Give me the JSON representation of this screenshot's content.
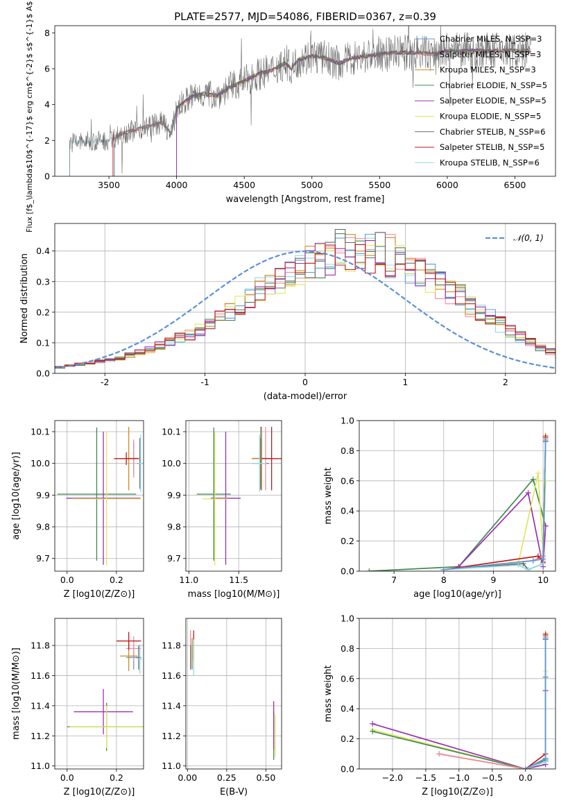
{
  "figure_title": "PLATE=2577, MJD=54086, FIBERID=0367, z=0.39",
  "colors": {
    "Chabrier MILES": "#5b9bd5",
    "Salpeter MILES": "#f08aa0",
    "Kroupa MILES": "#c98a1e",
    "Chabrier ELODIE": "#3f8a4f",
    "Salpeter ELODIE": "#9b2fb0",
    "Kroupa ELODIE": "#e0e85a",
    "Chabrier STELIB": "#6a6a6a",
    "Salpeter STELIB": "#c01818",
    "Kroupa STELIB": "#8fdbe8",
    "normal": "#5b8fd8"
  },
  "labels": {
    "spec_ylabel": "Flux [f$_\\lambda$10$^{-17}$ erg cm$^{-2}$ s$^{-1}$ A$^{-1}$]",
    "spec_xlabel": "wavelength [Angstrom, rest frame]",
    "hist_ylabel": "Normed distribution",
    "hist_xlabel": "(data-model)/error",
    "hist_legend": "𝒩(0, 1)",
    "age_ylabel": "age [log10(age/yr)]",
    "Z_xlabel": "Z [log10(Z/Z⊙)]",
    "mass_xlabel": "mass [log10(M/M⊙)]",
    "mw_ylabel": "mass weight",
    "age_xlabel": "age [log10(age/yr)]",
    "mass_ylabel": "mass [log10(M/M⊙)]",
    "ebv_xlabel": "E(B-V)"
  },
  "chart_data": [
    {
      "type": "line",
      "panel": "spectrum",
      "title": "PLATE=2577, MJD=54086, FIBERID=0367, z=0.39",
      "xlabel": "wavelength [Angstrom, rest frame]",
      "ylabel": "Flux [f_λ 10^-17 erg cm^-2 s^-1 A^-1]",
      "xlim": [
        3100,
        6800
      ],
      "ylim": [
        0,
        8.4
      ],
      "xticks": [
        3500,
        4000,
        4500,
        5000,
        5500,
        6000,
        6500
      ],
      "yticks": [
        0,
        2,
        4,
        6,
        8
      ],
      "legend": [
        "Chabrier MILES, N_SSP=3",
        "Salpeter MILES, N_SSP=3",
        "Kroupa MILES, N_SSP=3",
        "Chabrier ELODIE, N_SSP=5",
        "Salpeter ELODIE, N_SSP=5",
        "Kroupa ELODIE, N_SSP=5",
        "Chabrier STELIB, N_SSP=6",
        "Salpeter STELIB, N_SSP=5",
        "Kroupa STELIB, N_SSP=6"
      ],
      "continuum": [
        [
          3210,
          1.9
        ],
        [
          3500,
          2.0
        ],
        [
          3600,
          2.4
        ],
        [
          3700,
          2.6
        ],
        [
          3800,
          2.8
        ],
        [
          3900,
          3.0
        ],
        [
          3960,
          2.3
        ],
        [
          4000,
          3.8
        ],
        [
          4100,
          4.4
        ],
        [
          4200,
          4.6
        ],
        [
          4300,
          4.5
        ],
        [
          4400,
          5.0
        ],
        [
          4500,
          5.3
        ],
        [
          4600,
          5.7
        ],
        [
          4700,
          5.9
        ],
        [
          4800,
          6.3
        ],
        [
          4850,
          6.0
        ],
        [
          4900,
          6.5
        ],
        [
          5000,
          6.7
        ],
        [
          5100,
          6.6
        ],
        [
          5200,
          6.3
        ],
        [
          5300,
          6.6
        ],
        [
          5400,
          6.7
        ],
        [
          5500,
          6.8
        ],
        [
          5600,
          6.9
        ],
        [
          5700,
          6.9
        ],
        [
          5800,
          6.9
        ],
        [
          5900,
          6.8
        ],
        [
          6000,
          7.0
        ],
        [
          6100,
          7.0
        ],
        [
          6200,
          7.0
        ],
        [
          6300,
          7.0
        ],
        [
          6400,
          7.0
        ],
        [
          6500,
          7.0
        ],
        [
          6600,
          7.0
        ]
      ]
    },
    {
      "type": "line",
      "panel": "residual_histogram",
      "xlabel": "(data-model)/error",
      "ylabel": "Normed distribution",
      "xlim": [
        -2.5,
        2.5
      ],
      "ylim": [
        0,
        0.49
      ],
      "xticks": [
        -2,
        -1,
        0,
        1,
        2
      ],
      "yticks": [
        0.0,
        0.1,
        0.2,
        0.3,
        0.4
      ],
      "grid": true,
      "legend": "N(0,1)",
      "bin_width": 0.1,
      "bin_start": -2.5,
      "envelope": [
        0.02,
        0.025,
        0.03,
        0.035,
        0.04,
        0.045,
        0.05,
        0.06,
        0.07,
        0.08,
        0.09,
        0.1,
        0.115,
        0.13,
        0.145,
        0.16,
        0.18,
        0.2,
        0.22,
        0.24,
        0.27,
        0.29,
        0.31,
        0.33,
        0.345,
        0.36,
        0.37,
        0.38,
        0.39,
        0.395,
        0.39,
        0.385,
        0.38,
        0.37,
        0.36,
        0.35,
        0.33,
        0.31,
        0.29,
        0.27,
        0.25,
        0.22,
        0.2,
        0.18,
        0.16,
        0.14,
        0.12,
        0.1,
        0.085,
        0.07,
        0.06,
        0.05,
        0.045,
        0.04,
        0.035,
        0.03,
        0.027,
        0.025,
        0.022,
        0.02
      ]
    },
    {
      "type": "scatter",
      "panel": "age_vs_Z",
      "xlabel": "Z [log10(Z/Z⊙)]",
      "ylabel": "age [log10(age/yr)]",
      "xlim": [
        -0.05,
        0.31
      ],
      "ylim": [
        9.66,
        10.135
      ],
      "xticks": [
        0.0,
        0.2
      ],
      "yticks": [
        9.7,
        9.8,
        9.9,
        10.0,
        10.1
      ],
      "points": [
        {
          "model": "Chabrier MILES",
          "x": 0.27,
          "xerr": 0.03,
          "y": 10.016,
          "yerr": 0.05
        },
        {
          "model": "Salpeter MILES",
          "x": 0.27,
          "xerr": 0.03,
          "y": 10.015,
          "yerr": 0.06
        },
        {
          "model": "Kroupa MILES",
          "x": 0.25,
          "xerr": 0.035,
          "y": 10.015,
          "yerr": 0.1
        },
        {
          "model": "Chabrier ELODIE",
          "x": 0.12,
          "xerr": 0.16,
          "y": 9.903,
          "yerr": 0.21
        },
        {
          "model": "Salpeter ELODIE",
          "x": 0.147,
          "xerr": 0.15,
          "y": 9.89,
          "yerr": 0.21
        },
        {
          "model": "Kroupa ELODIE",
          "x": 0.16,
          "xerr": 0.14,
          "y": 9.888,
          "yerr": 0.21
        },
        {
          "model": "Chabrier STELIB",
          "x": 0.295,
          "xerr": 0.01,
          "y": 10.0,
          "yerr": 0.08
        },
        {
          "model": "Salpeter STELIB",
          "x": 0.24,
          "xerr": 0.05,
          "y": 10.015,
          "yerr": 0.02
        },
        {
          "model": "Kroupa STELIB",
          "x": 0.298,
          "xerr": 0.01,
          "y": 10.0,
          "yerr": 0.09
        }
      ]
    },
    {
      "type": "scatter",
      "panel": "age_vs_mass",
      "xlabel": "mass [log10(M/M⊙)]",
      "xlim": [
        10.97,
        11.93
      ],
      "ylim": [
        9.66,
        10.135
      ],
      "xticks": [
        11.0,
        11.5
      ],
      "yticks": [
        9.7,
        9.8,
        9.9,
        10.0,
        10.1
      ],
      "points": [
        {
          "model": "Chabrier MILES",
          "x": 11.72,
          "xerr": 0.08,
          "y": 10.016,
          "yerr": 0.1
        },
        {
          "model": "Salpeter MILES",
          "x": 11.77,
          "xerr": 0.08,
          "y": 10.015,
          "yerr": 0.1
        },
        {
          "model": "Kroupa MILES",
          "x": 11.73,
          "xerr": 0.1,
          "y": 10.015,
          "yerr": 0.1
        },
        {
          "model": "Chabrier ELODIE",
          "x": 11.25,
          "xerr": 0.17,
          "y": 9.903,
          "yerr": 0.21
        },
        {
          "model": "Salpeter ELODIE",
          "x": 11.37,
          "xerr": 0.15,
          "y": 9.89,
          "yerr": 0.21
        },
        {
          "model": "Kroupa ELODIE",
          "x": 11.26,
          "xerr": 0.13,
          "y": 9.888,
          "yerr": 0.21
        },
        {
          "model": "Chabrier STELIB",
          "x": 11.72,
          "xerr": 0.08,
          "y": 10.0,
          "yerr": 0.08
        },
        {
          "model": "Salpeter STELIB",
          "x": 11.83,
          "xerr": 0.1,
          "y": 10.015,
          "yerr": 0.1
        },
        {
          "model": "Kroupa STELIB",
          "x": 11.71,
          "xerr": 0.07,
          "y": 10.0,
          "yerr": 0.09
        }
      ]
    },
    {
      "type": "line",
      "panel": "mass_weight_vs_age",
      "xlabel": "age [log10(age/yr)]",
      "ylabel": "mass weight",
      "xlim": [
        6.3,
        10.25
      ],
      "ylim": [
        0,
        1.0
      ],
      "xticks": [
        7,
        8,
        9,
        10
      ],
      "yticks": [
        0.0,
        0.2,
        0.4,
        0.6,
        0.8,
        1.0
      ],
      "grid": true,
      "series": [
        {
          "model": "Chabrier ELODIE",
          "x": [
            6.5,
            8.3,
            9.8,
            10.05
          ],
          "y": [
            0.0,
            0.03,
            0.61,
            0.3
          ]
        },
        {
          "model": "Salpeter ELODIE",
          "x": [
            8.3,
            9.7,
            10.0,
            10.05
          ],
          "y": [
            0.03,
            0.52,
            0.03,
            0.3
          ]
        },
        {
          "model": "Kroupa ELODIE",
          "x": [
            8.0,
            9.5,
            9.9,
            10.0,
            10.05
          ],
          "y": [
            0.01,
            0.05,
            0.65,
            0.12,
            0.6
          ]
        },
        {
          "model": "Kroupa MILES",
          "x": [
            8.0,
            9.8,
            10.0,
            10.05
          ],
          "y": [
            0.01,
            0.07,
            0.1,
            0.9
          ]
        },
        {
          "model": "Salpeter MILES",
          "x": [
            8.0,
            9.8,
            10.0,
            10.05
          ],
          "y": [
            0.01,
            0.07,
            0.1,
            0.88
          ]
        },
        {
          "model": "Salpeter STELIB",
          "x": [
            8.0,
            9.9,
            10.0,
            10.05
          ],
          "y": [
            0.01,
            0.1,
            0.06,
            0.89
          ]
        },
        {
          "model": "Chabrier STELIB",
          "x": [
            8.0,
            9.6,
            9.7,
            10.0,
            10.05
          ],
          "y": [
            0.01,
            0.05,
            0.01,
            0.05,
            0.86
          ]
        },
        {
          "model": "Kroupa STELIB",
          "x": [
            8.0,
            9.5,
            9.7,
            10.0,
            10.05
          ],
          "y": [
            0.01,
            0.04,
            0.01,
            0.05,
            0.87
          ]
        },
        {
          "model": "Chabrier MILES",
          "x": [
            8.0,
            9.8,
            10.0,
            10.05
          ],
          "y": [
            0.01,
            0.07,
            0.08,
            0.87
          ]
        }
      ]
    },
    {
      "type": "scatter",
      "panel": "mass_vs_Z",
      "xlabel": "Z [log10(Z/Z⊙)]",
      "ylabel": "mass [log10(M/M⊙)]",
      "xlim": [
        -0.05,
        0.31
      ],
      "ylim": [
        10.98,
        11.98
      ],
      "xticks": [
        0.0,
        0.2
      ],
      "yticks": [
        11.0,
        11.2,
        11.4,
        11.6,
        11.8
      ],
      "points": [
        {
          "model": "Chabrier MILES",
          "x": 0.27,
          "xerr": 0.03,
          "y": 11.72,
          "yerr": 0.08
        },
        {
          "model": "Salpeter MILES",
          "x": 0.27,
          "xerr": 0.03,
          "y": 11.78,
          "yerr": 0.08
        },
        {
          "model": "Kroupa MILES",
          "x": 0.25,
          "xerr": 0.035,
          "y": 11.73,
          "yerr": 0.1
        },
        {
          "model": "Chabrier ELODIE",
          "x": 0.16,
          "xerr": 0.16,
          "y": 11.26,
          "yerr": 0.16
        },
        {
          "model": "Salpeter ELODIE",
          "x": 0.147,
          "xerr": 0.12,
          "y": 11.36,
          "yerr": 0.15
        },
        {
          "model": "Kroupa ELODIE",
          "x": 0.16,
          "xerr": 0.15,
          "y": 11.26,
          "yerr": 0.14
        },
        {
          "model": "Chabrier STELIB",
          "x": 0.29,
          "xerr": 0.01,
          "y": 11.72,
          "yerr": 0.08
        },
        {
          "model": "Salpeter STELIB",
          "x": 0.25,
          "xerr": 0.05,
          "y": 11.83,
          "yerr": 0.06
        },
        {
          "model": "Kroupa STELIB",
          "x": 0.295,
          "xerr": 0.01,
          "y": 11.71,
          "yerr": 0.1
        }
      ]
    },
    {
      "type": "scatter",
      "panel": "mass_vs_EBV",
      "xlabel": "E(B-V)",
      "xlim": [
        -0.01,
        0.6
      ],
      "ylim": [
        10.98,
        11.98
      ],
      "xticks": [
        0.0,
        0.25,
        0.5
      ],
      "yticks": [
        11.0,
        11.2,
        11.4,
        11.6,
        11.8
      ],
      "points": [
        {
          "model": "Chabrier MILES",
          "x": 0.03,
          "y": 11.72,
          "yerr": 0.08
        },
        {
          "model": "Salpeter MILES",
          "x": 0.02,
          "y": 11.78,
          "yerr": 0.12
        },
        {
          "model": "Kroupa MILES",
          "x": 0.03,
          "y": 11.75,
          "yerr": 0.1
        },
        {
          "model": "Chabrier ELODIE",
          "x": 0.55,
          "y": 11.2,
          "yerr": 0.16
        },
        {
          "model": "Salpeter ELODIE",
          "x": 0.55,
          "y": 11.27,
          "yerr": 0.16
        },
        {
          "model": "Kroupa ELODIE",
          "x": 0.56,
          "y": 11.2,
          "yerr": 0.14
        },
        {
          "model": "Chabrier STELIB",
          "x": 0.02,
          "y": 11.72,
          "yerr": 0.08
        },
        {
          "model": "Salpeter STELIB",
          "x": 0.04,
          "y": 11.8,
          "yerr": 0.1
        },
        {
          "model": "Kroupa STELIB",
          "x": 0.04,
          "y": 11.72,
          "yerr": 0.12
        }
      ]
    },
    {
      "type": "line",
      "panel": "mass_weight_vs_Z",
      "xlabel": "Z [log10(Z/Z⊙)]",
      "ylabel": "mass weight",
      "xlim": [
        -2.5,
        0.45
      ],
      "ylim": [
        0,
        1.0
      ],
      "xticks": [
        -2.0,
        -1.5,
        -1.0,
        -0.5,
        0.0
      ],
      "yticks": [
        0.0,
        0.2,
        0.4,
        0.6,
        0.8,
        1.0
      ],
      "grid": true,
      "series": [
        {
          "model": "Salpeter ELODIE",
          "x": [
            -2.3,
            0.0,
            0.3,
            0.3
          ],
          "y": [
            0.3,
            0.0,
            0.03,
            0.52
          ]
        },
        {
          "model": "Kroupa ELODIE",
          "x": [
            -2.3,
            0.0,
            0.3,
            0.3
          ],
          "y": [
            0.26,
            0.0,
            0.05,
            0.65
          ]
        },
        {
          "model": "Chabrier ELODIE",
          "x": [
            -2.3,
            0.0,
            0.3,
            0.3
          ],
          "y": [
            0.25,
            0.0,
            0.06,
            0.61
          ]
        },
        {
          "model": "Kroupa MILES",
          "x": [
            -1.3,
            0.0,
            0.3,
            0.3
          ],
          "y": [
            0.1,
            0.0,
            0.07,
            0.9
          ]
        },
        {
          "model": "Salpeter MILES",
          "x": [
            -1.3,
            0.0,
            0.3,
            0.3
          ],
          "y": [
            0.1,
            0.0,
            0.07,
            0.88
          ]
        },
        {
          "model": "Salpeter STELIB",
          "x": [
            0.0,
            0.3,
            0.3
          ],
          "y": [
            0.0,
            0.1,
            0.89
          ]
        },
        {
          "model": "Chabrier STELIB",
          "x": [
            0.0,
            0.3,
            0.3
          ],
          "y": [
            0.0,
            0.05,
            0.86
          ]
        },
        {
          "model": "Kroupa STELIB",
          "x": [
            0.0,
            0.3,
            0.3
          ],
          "y": [
            0.0,
            0.05,
            0.87
          ]
        },
        {
          "model": "Chabrier MILES",
          "x": [
            0.0,
            0.3,
            0.3
          ],
          "y": [
            0.0,
            0.07,
            0.87
          ]
        }
      ]
    }
  ]
}
